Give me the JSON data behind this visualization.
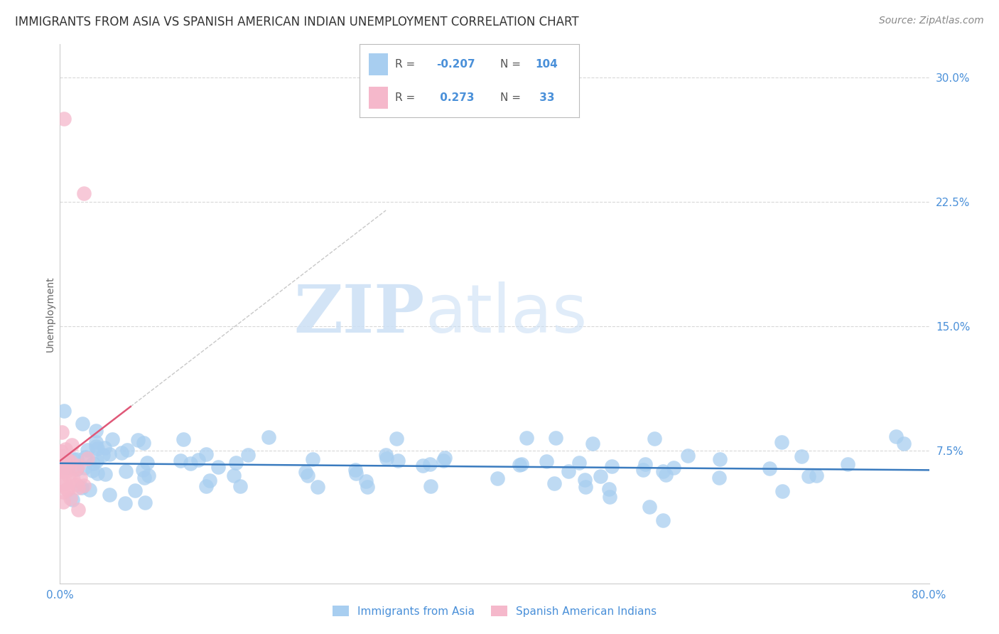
{
  "title": "IMMIGRANTS FROM ASIA VS SPANISH AMERICAN INDIAN UNEMPLOYMENT CORRELATION CHART",
  "source": "Source: ZipAtlas.com",
  "ylabel": "Unemployment",
  "xlim": [
    0.0,
    0.8
  ],
  "ylim": [
    -0.005,
    0.32
  ],
  "ytick_vals": [
    0.075,
    0.15,
    0.225,
    0.3
  ],
  "ytick_labels": [
    "7.5%",
    "15.0%",
    "22.5%",
    "30.0%"
  ],
  "xtick_vals": [
    0.0,
    0.8
  ],
  "xtick_labels": [
    "0.0%",
    "80.0%"
  ],
  "title_fontsize": 12,
  "axis_label_fontsize": 10,
  "tick_fontsize": 11,
  "background_color": "#ffffff",
  "grid_color": "#d8d8d8",
  "blue_marker_color": "#a8cef0",
  "pink_marker_color": "#f5b8cb",
  "blue_line_color": "#3a7bbf",
  "pink_line_color": "#e05878",
  "pink_extrap_color": "#c8c8c8",
  "tick_color": "#4a90d9",
  "R_blue": -0.207,
  "N_blue": 104,
  "R_pink": 0.273,
  "N_pink": 33,
  "watermark_zip": "ZIP",
  "watermark_atlas": "atlas",
  "legend_label_blue": "Immigrants from Asia",
  "legend_label_pink": "Spanish American Indians"
}
